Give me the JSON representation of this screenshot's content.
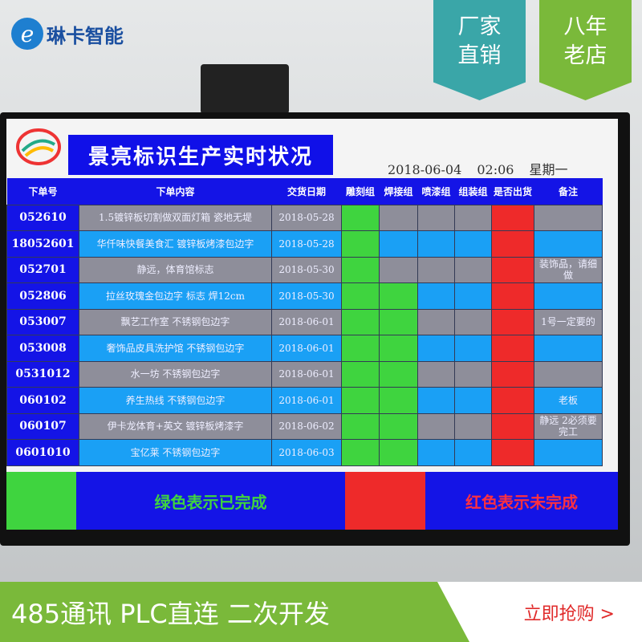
{
  "overlay": {
    "brand": "琳卡智能",
    "tag1": [
      "厂家",
      "直销"
    ],
    "tag2": [
      "八年",
      "老店"
    ],
    "banner_text": "485通讯 PLC直连 二次开发",
    "buy_label": "立即抢购 >",
    "tag1_color": "#3aa6a8",
    "tag2_color": "#7ab93a"
  },
  "board": {
    "title": "景亮标识生产实时状况",
    "date": "2018-06-04  02:06  星期一",
    "columns": [
      "下单号",
      "下单内容",
      "交货日期",
      "雕刻组",
      "焊接组",
      "喷漆组",
      "组装组",
      "是否出货",
      "备注"
    ],
    "rows": [
      {
        "id": "052610",
        "content": "1.5镀锌板切割做双面灯箱  瓷地无堤",
        "date": "2018-05-28",
        "status": [
          "done",
          "",
          "",
          "",
          "pending"
        ],
        "note": ""
      },
      {
        "id": "18052601",
        "content": "华仟味快餐美食汇  镀锌板烤漆包边字",
        "date": "2018-05-28",
        "status": [
          "done",
          "",
          "",
          "",
          "pending"
        ],
        "note": ""
      },
      {
        "id": "052701",
        "content": "静远，体育馆标志",
        "date": "2018-05-30",
        "status": [
          "done",
          "",
          "",
          "",
          "pending"
        ],
        "note": "装饰品，请细做"
      },
      {
        "id": "052806",
        "content": "拉丝玫瑰金包边字  标志  焊12cm",
        "date": "2018-05-30",
        "status": [
          "done",
          "done",
          "",
          "",
          "pending"
        ],
        "note": ""
      },
      {
        "id": "053007",
        "content": "飘艺工作室    不锈钢包边字",
        "date": "2018-06-01",
        "status": [
          "done",
          "done",
          "",
          "",
          "pending"
        ],
        "note": "1号一定要的"
      },
      {
        "id": "053008",
        "content": "奢饰品皮具洗护馆  不锈钢包边字",
        "date": "2018-06-01",
        "status": [
          "done",
          "done",
          "",
          "",
          "pending"
        ],
        "note": ""
      },
      {
        "id": "0531012",
        "content": "水一坊  不锈钢包边字",
        "date": "2018-06-01",
        "status": [
          "done",
          "done",
          "",
          "",
          "pending"
        ],
        "note": ""
      },
      {
        "id": "060102",
        "content": "养生热线    不锈钢包边字",
        "date": "2018-06-01",
        "status": [
          "done",
          "done",
          "",
          "",
          "pending"
        ],
        "note": "老板"
      },
      {
        "id": "060107",
        "content": "伊卡龙体育+英文  镀锌板烤漆字",
        "date": "2018-06-02",
        "status": [
          "done",
          "done",
          "",
          "",
          "pending"
        ],
        "note": "静远  2必须要完工"
      },
      {
        "id": "0601010",
        "content": "宝亿莱  不锈钢包边字",
        "date": "2018-06-03",
        "status": [
          "done",
          "done",
          "",
          "",
          "pending"
        ],
        "note": ""
      }
    ],
    "legend_done": "绿色表示已完成",
    "legend_pending": "红色表示未完成",
    "colors": {
      "done": "#3fd43f",
      "pending": "#ee2a2a",
      "header": "#1414e6"
    }
  }
}
